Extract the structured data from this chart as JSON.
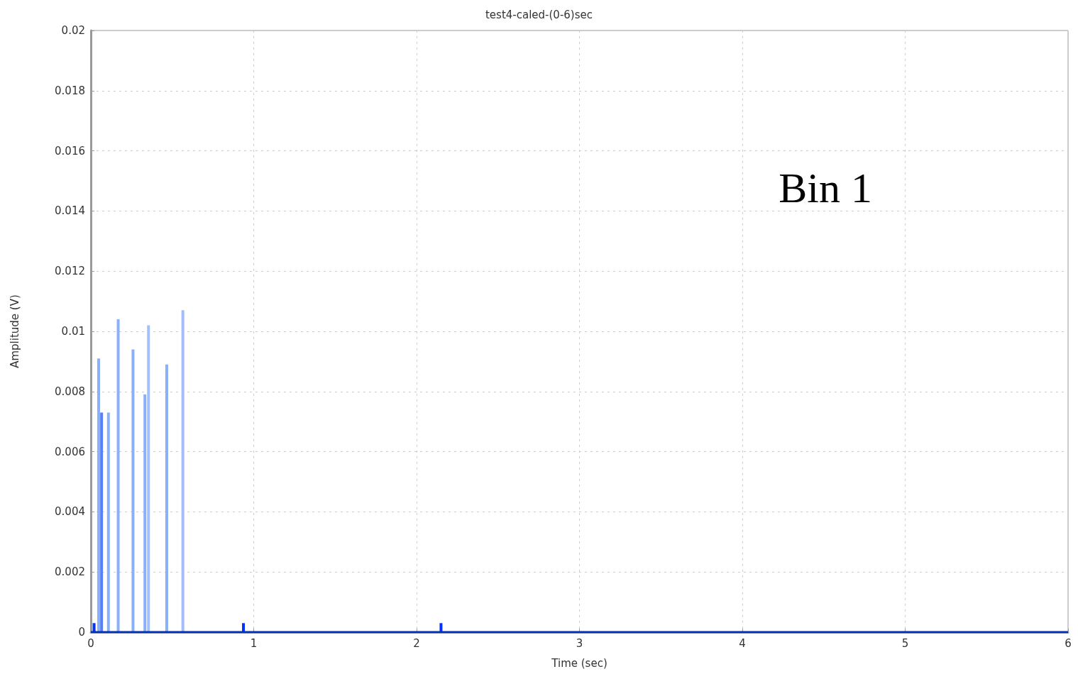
{
  "chart_data": {
    "type": "bar",
    "title": "test4-caled-(0-6)sec",
    "xlabel": "Time (sec)",
    "ylabel": "Amplitude (V)",
    "annotations": [
      "Bin 1"
    ],
    "xlim": [
      0,
      6
    ],
    "xticks": [
      0,
      1,
      2,
      3,
      4,
      5,
      6
    ],
    "ylim": [
      0,
      0.02
    ],
    "yticks": [
      0,
      0.002,
      0.004,
      0.006,
      0.008,
      0.01,
      0.012,
      0.014,
      0.016,
      0.018,
      0.02
    ],
    "grid": true,
    "series": [
      {
        "x": [
          0.02,
          0.048,
          0.066,
          0.108,
          0.168,
          0.259,
          0.332,
          0.354,
          0.466,
          0.565,
          0.937,
          2.15
        ],
        "values": [
          0.0003,
          0.0091,
          0.0073,
          0.0073,
          0.0104,
          0.0094,
          0.0079,
          0.0102,
          0.0089,
          0.0107,
          0.0003,
          0.0003
        ],
        "colors": [
          "#0033ff",
          "#8ab0fa",
          "#5a80f5",
          "#8ab0fa",
          "#8ab0fa",
          "#8ab0fa",
          "#8ab0fa",
          "#a4c0fb",
          "#8ab0fa",
          "#a4bcf8",
          "#0033ff",
          "#0033ff"
        ]
      },
      {
        "type": "line",
        "x": [
          0,
          6
        ],
        "values": [
          0,
          0
        ],
        "color": "#0033bb"
      }
    ]
  }
}
